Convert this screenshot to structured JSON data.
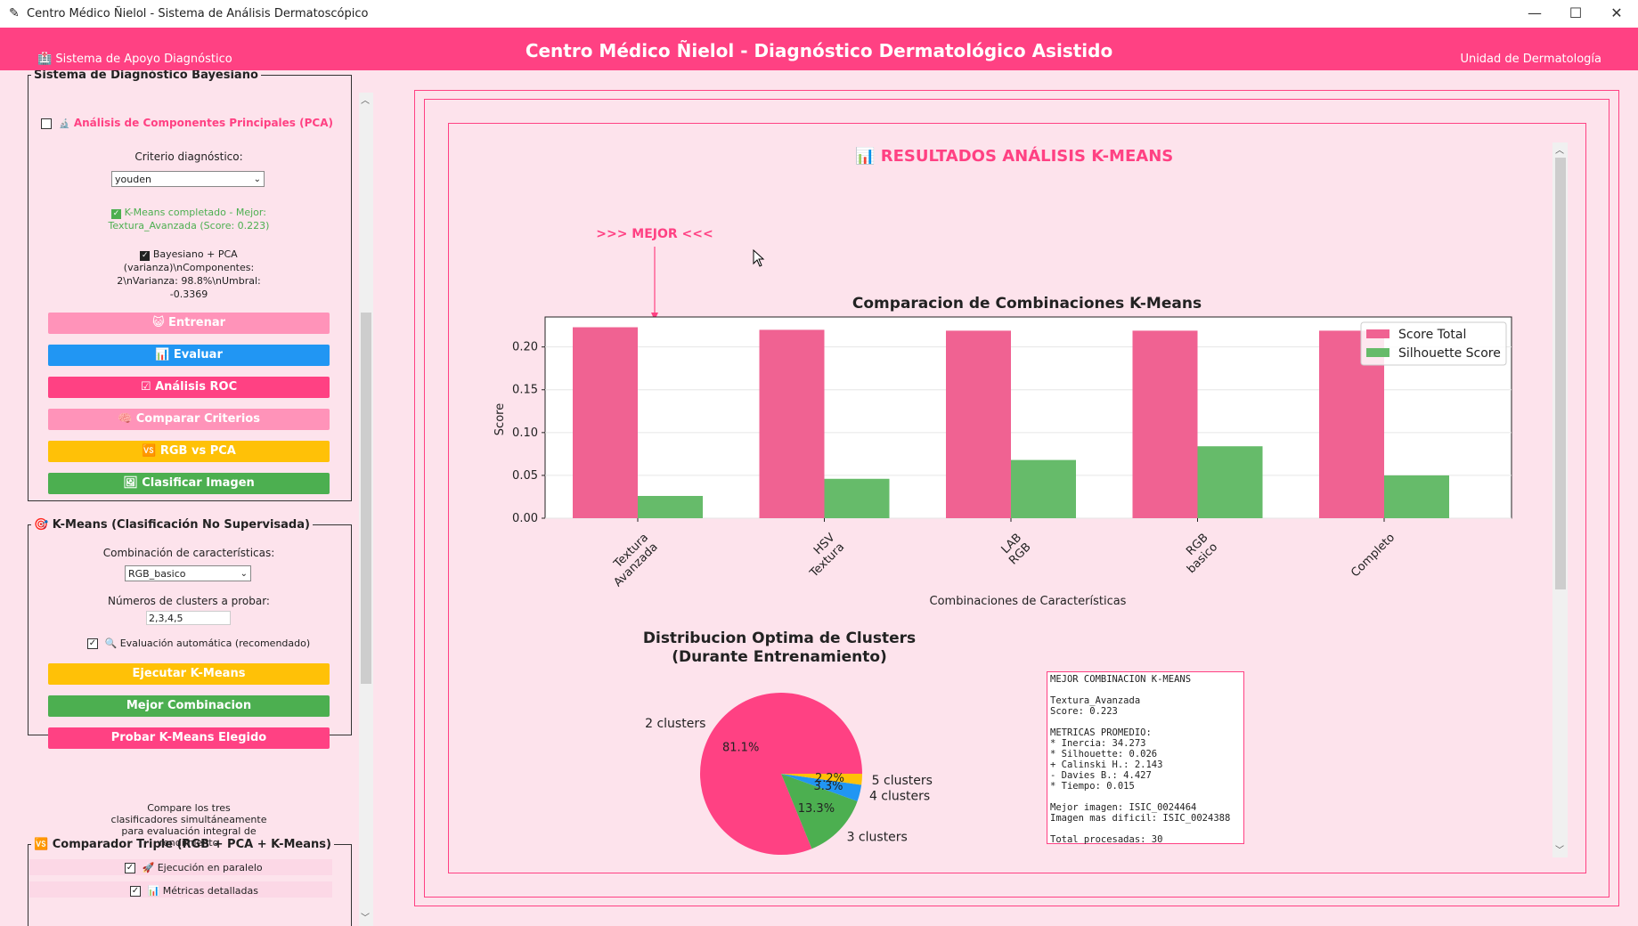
{
  "window": {
    "title": "Centro Médico Ñielol - Sistema de Análisis Dermatoscópico",
    "minimize": "—",
    "maximize": "☐",
    "close": "✕"
  },
  "header": {
    "left": "Sistema de Apoyo Diagnóstico",
    "title": "Centro Médico Ñielol - Diagnóstico Dermatológico Asistido",
    "right": "Unidad de Dermatología"
  },
  "bayes": {
    "legend": "Sistema de Diagnóstico Bayesiano",
    "pca_label": "Análisis de Componentes Principales (PCA)",
    "criterio_label": "Criterio diagnóstico:",
    "criterio_value": "youden",
    "kmeans_status_1": "K-Means completado - Mejor:",
    "kmeans_status_2": "Textura_Avanzada (Score: 0.223)",
    "bayes_status": [
      "Bayesiano + PCA",
      "(varianza)\\nComponentes:",
      "2\\nVarianza: 98.8%\\nUmbral:",
      "-0.3369"
    ],
    "buttons": {
      "entrenar": "Entrenar",
      "evaluar": "Evaluar",
      "roc": "Análisis ROC",
      "comparar": "Comparar Criterios",
      "rgbpca": "RGB vs PCA",
      "clasificar": "Clasificar Imagen"
    }
  },
  "kmeans_panel": {
    "legend": "K-Means (Clasificación No Supervisada)",
    "comb_label": "Combinación de características:",
    "comb_value": "RGB_basico",
    "clusters_label": "Números de clusters a probar:",
    "clusters_value": "2,3,4,5",
    "auto_label": "Evaluación automática (recomendado)",
    "buttons": {
      "ejecutar": "Ejecutar K-Means",
      "mejor": "Mejor Combinacion",
      "probar": "Probar K-Means Elegido"
    }
  },
  "triple": {
    "legend": "Comparador Triple (RGB + PCA + K-Means)",
    "desc": [
      "Compare los tres",
      "clasificadores simultáneamente",
      "para evaluación integral de",
      "rendimiento"
    ],
    "paralelo": "Ejecución en paralelo",
    "metricas": "Métricas detalladas"
  },
  "results": {
    "title": "RESULTADOS ANÁLISIS K-MEANS",
    "best_marker": ">>> MEJOR <<<"
  },
  "colors": {
    "accent": "#ff4183",
    "score": "#f06292",
    "silhouette": "#66bb6a",
    "blue": "#2196f3",
    "yellow": "#ffc107",
    "green": "#4caf50"
  },
  "chart_data": [
    {
      "type": "bar",
      "title": "Comparacion de Combinaciones K-Means",
      "xlabel": "Combinaciones de Características",
      "ylabel": "Score",
      "categories": [
        "Textura\nAvanzada",
        "HSV\nTextura",
        "LAB\nRGB",
        "RGB\nbasico",
        "Completo"
      ],
      "series": [
        {
          "name": "Score Total",
          "values": [
            0.223,
            0.22,
            0.219,
            0.219,
            0.219
          ]
        },
        {
          "name": "Silhouette Score",
          "values": [
            0.026,
            0.046,
            0.068,
            0.084,
            0.05
          ]
        }
      ],
      "ylim": [
        0,
        0.235
      ],
      "yticks": [
        "0.00",
        "0.05",
        "0.10",
        "0.15",
        "0.20"
      ],
      "legend": "top-right",
      "grid": true
    },
    {
      "type": "pie",
      "title": [
        "Distribucion Optima de Clusters",
        "(Durante Entrenamiento)"
      ],
      "labels": [
        "2 clusters",
        "3 clusters",
        "4 clusters",
        "5 clusters"
      ],
      "values": [
        81.1,
        13.3,
        3.3,
        2.2
      ],
      "pct_labels": [
        "81.1%",
        "13.3%",
        "3.3%",
        "2.2%"
      ]
    }
  ],
  "best_box": [
    "MEJOR COMBINACION K-MEANS",
    "",
    "Textura_Avanzada",
    "Score: 0.223",
    "",
    "METRICAS PROMEDIO:",
    "* Inercia: 34.273",
    "* Silhouette: 0.026",
    "+ Calinski H.: 2.143",
    "- Davies B.: 4.427",
    "* Tiempo: 0.015",
    "",
    "Mejor imagen: ISIC_0024464",
    "Imagen mas dificil: ISIC_0024388",
    "",
    "Total procesadas: 30"
  ]
}
